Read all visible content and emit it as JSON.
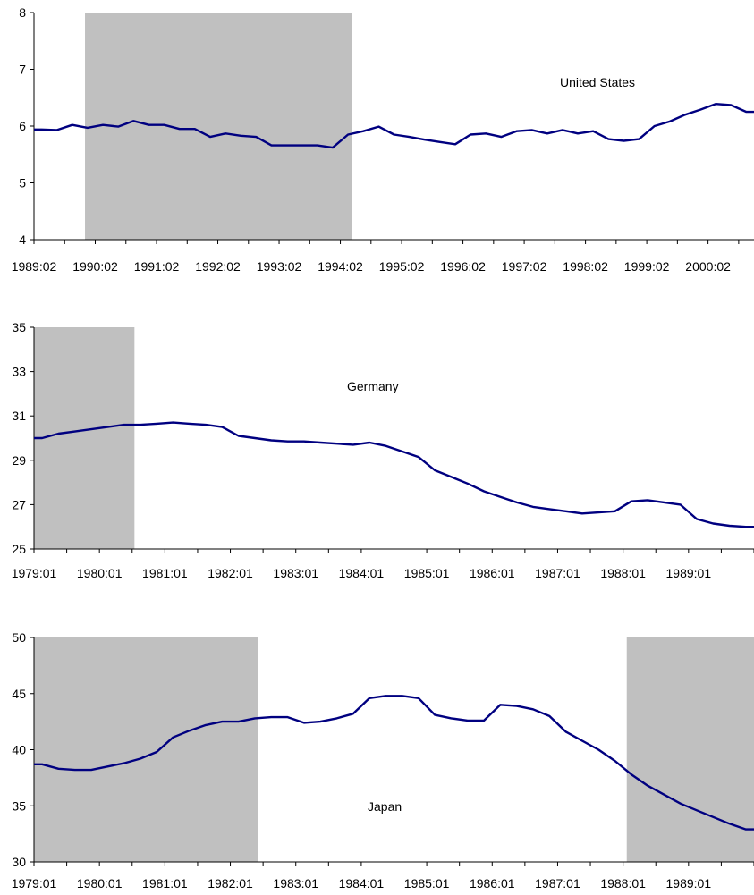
{
  "colors": {
    "line": "#000080",
    "shade": "#c0c0c0",
    "axis": "#000000"
  },
  "chart_data": [
    {
      "type": "line",
      "series_label": "United States",
      "ylim": [
        4,
        8
      ],
      "yticks": [
        4,
        5,
        6,
        7,
        8
      ],
      "x_start": 1989.25,
      "x_end": 2001.25,
      "xtick_labels": [
        "1989:02",
        "1990:02",
        "1991:02",
        "1992:02",
        "1993:02",
        "1994:02",
        "1995:02",
        "1996:02",
        "1997:02",
        "1998:02",
        "1999:02",
        "2000:02"
      ],
      "shaded_ranges": [
        [
          1990.1,
          1994.55
        ]
      ],
      "values": [
        5.94,
        5.93,
        6.02,
        5.97,
        6.02,
        5.99,
        6.09,
        6.02,
        6.02,
        5.95,
        5.95,
        5.81,
        5.87,
        5.83,
        5.81,
        5.66,
        5.66,
        5.66,
        5.66,
        5.62,
        5.85,
        5.91,
        5.99,
        5.85,
        5.81,
        5.76,
        5.72,
        5.68,
        5.85,
        5.87,
        5.81,
        5.91,
        5.93,
        5.87,
        5.93,
        5.87,
        5.91,
        5.77,
        5.74,
        5.77,
        6.0,
        6.08,
        6.2,
        6.29,
        6.39,
        6.37,
        6.25
      ],
      "value_unit": "quarterly"
    },
    {
      "type": "line",
      "series_label": "Germany",
      "ylim": [
        25,
        35
      ],
      "yticks": [
        25,
        27,
        29,
        31,
        33,
        35
      ],
      "x_start": 1979.0,
      "x_end": 1989.75,
      "xtick_labels": [
        "1979:01",
        "1980:01",
        "1981:01",
        "1982:01",
        "1983:01",
        "1984:01",
        "1985:01",
        "1986:01",
        "1987:01",
        "1988:01",
        "1989:01"
      ],
      "shaded_ranges": [
        [
          1979.0,
          1980.5
        ]
      ],
      "values": [
        30.0,
        30.2,
        30.3,
        30.4,
        30.5,
        30.6,
        30.6,
        30.65,
        30.7,
        30.65,
        30.6,
        30.5,
        30.1,
        30.0,
        29.9,
        29.85,
        29.85,
        29.8,
        29.75,
        29.7,
        29.8,
        29.65,
        29.4,
        29.15,
        28.55,
        28.25,
        27.95,
        27.6,
        27.35,
        27.1,
        26.9,
        26.8,
        26.7,
        26.6,
        26.65,
        26.7,
        27.15,
        27.2,
        27.1,
        27.0,
        26.35,
        26.15,
        26.05,
        26.0
      ]
    },
    {
      "type": "line",
      "series_label": "Japan",
      "ylim": [
        30,
        50
      ],
      "yticks": [
        30,
        35,
        40,
        45,
        50
      ],
      "x_start": 1979.0,
      "x_end": 1989.75,
      "xtick_labels": [
        "1979:01",
        "1980:01",
        "1981:01",
        "1982:01",
        "1983:01",
        "1984:01",
        "1985:01",
        "1986:01",
        "1987:01",
        "1988:01",
        "1989:01"
      ],
      "shaded_ranges": [
        [
          1979.0,
          1982.35
        ],
        [
          1987.85,
          1989.75
        ]
      ],
      "values": [
        38.7,
        38.3,
        38.2,
        38.2,
        38.5,
        38.8,
        39.2,
        39.8,
        41.1,
        41.7,
        42.2,
        42.5,
        42.5,
        42.8,
        42.9,
        42.9,
        42.4,
        42.5,
        42.8,
        43.2,
        44.6,
        44.8,
        44.8,
        44.6,
        43.1,
        42.8,
        42.6,
        42.6,
        44.0,
        43.9,
        43.6,
        43.0,
        41.6,
        40.8,
        40.0,
        39.0,
        37.8,
        36.8,
        36.0,
        35.2,
        34.6,
        34.0,
        33.4,
        32.9
      ]
    }
  ]
}
